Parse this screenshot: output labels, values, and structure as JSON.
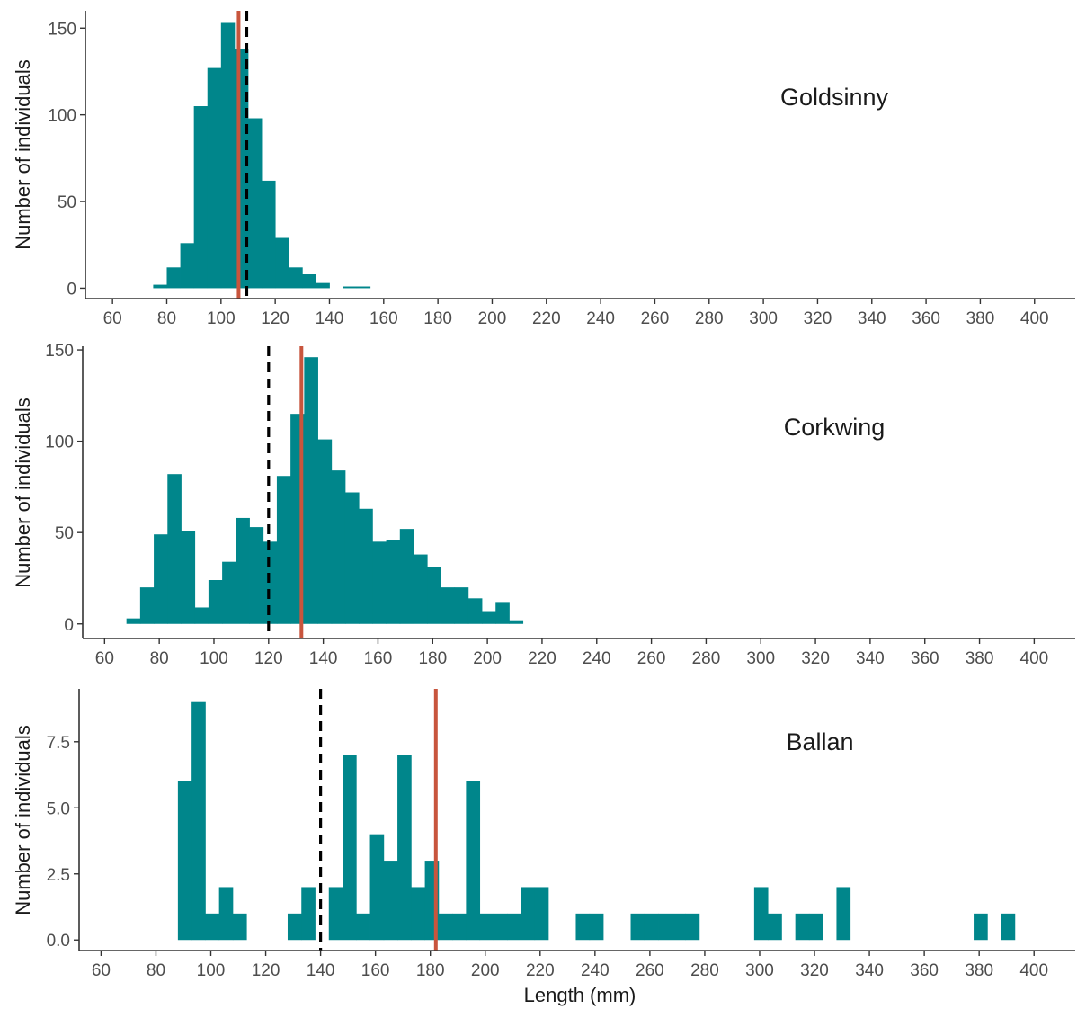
{
  "figure": {
    "xlabel": "Length (mm)",
    "bar_color": "#00868B",
    "mean_line_color": "#C8553D",
    "reference_line_color": "#000000",
    "reference_line_style": "dashed"
  },
  "chart_data": [
    {
      "type": "bar",
      "title": "Goldsinny",
      "xlabel": "",
      "ylabel": "Number of individuals",
      "bin_width": 5,
      "bin_start_values": [
        75,
        80,
        85,
        90,
        95,
        100,
        105,
        110,
        115,
        120,
        125,
        130,
        135,
        140,
        145,
        150,
        155
      ],
      "values": [
        2,
        12,
        26,
        105,
        127,
        153,
        138,
        98,
        62,
        29,
        12,
        8,
        3,
        0,
        1,
        1,
        0
      ],
      "xlim": [
        50,
        415
      ],
      "ylim": [
        -6,
        160
      ],
      "x_ticks": [
        60,
        80,
        100,
        120,
        140,
        160,
        180,
        200,
        220,
        240,
        260,
        280,
        300,
        320,
        340,
        360,
        380,
        400
      ],
      "y_ticks": [
        0,
        50,
        100,
        150
      ],
      "y_tick_labels": [
        "0",
        "50",
        "100",
        "150"
      ],
      "mean_line_x": 106.5,
      "reference_line_x": 109.5,
      "grid": false,
      "legend": "none"
    },
    {
      "type": "bar",
      "title": "Corkwing",
      "xlabel": "",
      "ylabel": "Number of individuals",
      "bin_width": 5,
      "bin_start_values": [
        68,
        73,
        78,
        83,
        88,
        93,
        98,
        103,
        108,
        113,
        118,
        123,
        128,
        133,
        138,
        143,
        148,
        153,
        158,
        163,
        168,
        173,
        178,
        183,
        188,
        193,
        198,
        203,
        208
      ],
      "values": [
        3,
        20,
        49,
        82,
        51,
        9,
        24,
        34,
        58,
        53,
        45,
        81,
        115,
        146,
        101,
        84,
        72,
        63,
        45,
        46,
        52,
        38,
        31,
        20,
        20,
        14,
        7,
        12,
        2
      ],
      "xlim": [
        52,
        415
      ],
      "ylim": [
        -8,
        152
      ],
      "x_ticks": [
        60,
        80,
        100,
        120,
        140,
        160,
        180,
        200,
        220,
        240,
        260,
        280,
        300,
        320,
        340,
        360,
        380,
        400
      ],
      "y_ticks": [
        0,
        50,
        100,
        150
      ],
      "y_tick_labels": [
        "0",
        "50",
        "100",
        "150"
      ],
      "mean_line_x": 132,
      "reference_line_x": 120,
      "grid": false,
      "legend": "none"
    },
    {
      "type": "bar",
      "title": "Ballan",
      "xlabel": "Length (mm)",
      "ylabel": "Number of individuals",
      "bin_width": 5,
      "bin_start_values": [
        88,
        93,
        98,
        103,
        108,
        113,
        118,
        123,
        128,
        133,
        138,
        143,
        148,
        153,
        158,
        163,
        168,
        173,
        178,
        183,
        188,
        193,
        198,
        203,
        208,
        213,
        218,
        223,
        228,
        233,
        238,
        243,
        248,
        253,
        258,
        263,
        268,
        273,
        278,
        283,
        288,
        293,
        298,
        303,
        308,
        313,
        318,
        323,
        328,
        333,
        338,
        343,
        348,
        353,
        358,
        363,
        368,
        373,
        378,
        383,
        388
      ],
      "values": [
        6,
        9,
        1,
        2,
        1,
        0,
        0,
        0,
        1,
        2,
        0,
        2,
        7,
        1,
        4,
        3,
        7,
        2,
        3,
        1,
        1,
        6,
        1,
        1,
        1,
        2,
        2,
        0,
        0,
        1,
        1,
        0,
        0,
        1,
        1,
        1,
        1,
        1,
        0,
        0,
        0,
        0,
        2,
        1,
        0,
        1,
        1,
        0,
        2,
        0,
        0,
        0,
        0,
        0,
        0,
        0,
        0,
        0,
        1,
        0,
        1
      ],
      "xlim": [
        52,
        415
      ],
      "ylim": [
        -0.4,
        9.5
      ],
      "x_ticks": [
        60,
        80,
        100,
        120,
        140,
        160,
        180,
        200,
        220,
        240,
        260,
        280,
        300,
        320,
        340,
        360,
        380,
        400
      ],
      "y_ticks": [
        0,
        2.5,
        5,
        7.5
      ],
      "y_tick_labels": [
        "0.0",
        "2.5",
        "5.0",
        "7.5"
      ],
      "mean_line_x": 182,
      "reference_line_x": 140,
      "grid": false,
      "legend": "none"
    }
  ]
}
